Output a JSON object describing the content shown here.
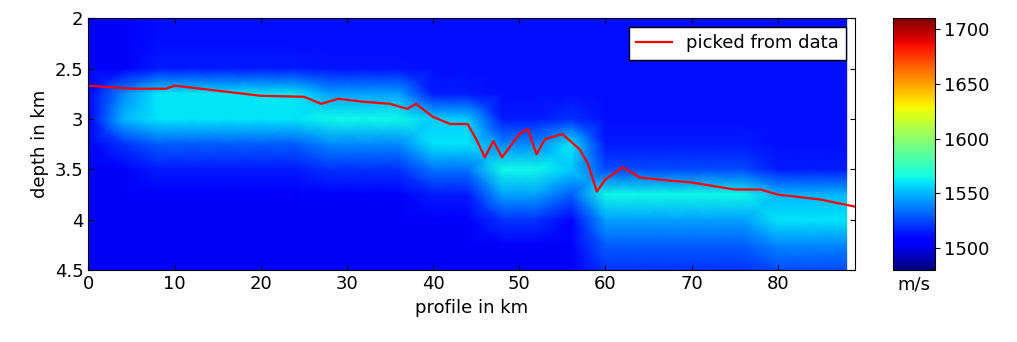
{
  "chart_data": {
    "type": "heatmap",
    "xlabel": "profile in km",
    "ylabel": "depth in km",
    "xlim": [
      0,
      89
    ],
    "ylim": [
      4.5,
      2
    ],
    "xticks": [
      0,
      10,
      20,
      30,
      40,
      50,
      60,
      70,
      80
    ],
    "yticks": [
      2,
      2.5,
      3,
      3.5,
      4,
      4.5
    ],
    "legend": "upper right",
    "heatmap": {
      "x": [
        0,
        4,
        8,
        12,
        16,
        20,
        24,
        28,
        32,
        36,
        40,
        44,
        48,
        52,
        56,
        60,
        64,
        68,
        72,
        76,
        80,
        84,
        88
      ],
      "y": [
        2.0,
        2.25,
        2.5,
        2.75,
        3.0,
        3.25,
        3.5,
        3.75,
        4.0,
        4.25,
        4.5
      ],
      "cells": [
        [
          1505,
          1505,
          1512,
          1512,
          1512,
          1512,
          1512,
          1512,
          1512,
          1512,
          1512,
          1512,
          1512,
          1512,
          1512,
          1512,
          1512,
          1512,
          1512,
          1512,
          1512,
          1512,
          1512
        ],
        [
          1505,
          1505,
          1512,
          1512,
          1512,
          1512,
          1512,
          1512,
          1512,
          1512,
          1512,
          1512,
          1512,
          1512,
          1512,
          1512,
          1512,
          1512,
          1512,
          1512,
          1512,
          1512,
          1512
        ],
        [
          1505,
          1505,
          1515,
          1515,
          1515,
          1515,
          1515,
          1513,
          1513,
          1513,
          1512,
          1512,
          1512,
          1512,
          1512,
          1512,
          1512,
          1512,
          1512,
          1512,
          1512,
          1512,
          1512
        ],
        [
          1505,
          1540,
          1560,
          1560,
          1560,
          1560,
          1560,
          1545,
          1545,
          1545,
          1515,
          1515,
          1512,
          1512,
          1512,
          1512,
          1512,
          1512,
          1512,
          1512,
          1512,
          1512,
          1512
        ],
        [
          1505,
          1550,
          1560,
          1560,
          1560,
          1560,
          1560,
          1565,
          1565,
          1565,
          1555,
          1555,
          1515,
          1515,
          1520,
          1512,
          1512,
          1512,
          1512,
          1512,
          1512,
          1512,
          1512
        ],
        [
          1505,
          1520,
          1530,
          1530,
          1530,
          1530,
          1530,
          1540,
          1540,
          1540,
          1560,
          1560,
          1540,
          1540,
          1560,
          1515,
          1515,
          1515,
          1515,
          1515,
          1512,
          1512,
          1512
        ],
        [
          1505,
          1505,
          1515,
          1515,
          1515,
          1515,
          1515,
          1520,
          1520,
          1520,
          1535,
          1535,
          1565,
          1565,
          1555,
          1525,
          1525,
          1525,
          1525,
          1525,
          1515,
          1515,
          1515
        ],
        [
          1505,
          1505,
          1505,
          1505,
          1505,
          1505,
          1505,
          1505,
          1505,
          1505,
          1515,
          1515,
          1545,
          1545,
          1530,
          1565,
          1565,
          1565,
          1565,
          1565,
          1550,
          1550,
          1550
        ],
        [
          1505,
          1505,
          1505,
          1505,
          1505,
          1505,
          1505,
          1505,
          1505,
          1505,
          1505,
          1505,
          1520,
          1520,
          1510,
          1545,
          1545,
          1545,
          1545,
          1545,
          1560,
          1560,
          1560
        ],
        [
          1505,
          1505,
          1505,
          1505,
          1505,
          1505,
          1505,
          1505,
          1505,
          1505,
          1505,
          1505,
          1505,
          1505,
          1505,
          1530,
          1530,
          1530,
          1530,
          1530,
          1540,
          1540,
          1540
        ],
        [
          1505,
          1505,
          1505,
          1505,
          1505,
          1505,
          1505,
          1505,
          1505,
          1505,
          1505,
          1505,
          1505,
          1505,
          1505,
          1520,
          1520,
          1520,
          1520,
          1520,
          1525,
          1525,
          1525
        ]
      ],
      "colorbar_range": [
        1480,
        1710
      ],
      "colorbar_ticks": [
        1500,
        1550,
        1600,
        1650,
        1700
      ],
      "colorbar_label": "m/s"
    },
    "series": [
      {
        "name": "picked from data",
        "color": "#ff0000",
        "type": "line",
        "x": [
          0,
          5,
          9,
          10,
          12,
          15,
          20,
          25,
          27,
          29,
          32,
          35,
          37,
          38,
          40,
          42,
          44,
          45,
          46,
          47,
          48,
          50,
          51,
          52,
          53,
          55,
          57,
          58,
          59,
          60,
          62,
          64,
          66,
          70,
          75,
          78,
          80,
          85,
          89
        ],
        "values": [
          2.67,
          2.7,
          2.7,
          2.67,
          2.69,
          2.72,
          2.77,
          2.78,
          2.85,
          2.8,
          2.83,
          2.85,
          2.9,
          2.85,
          2.98,
          3.05,
          3.05,
          3.2,
          3.38,
          3.22,
          3.38,
          3.15,
          3.1,
          3.35,
          3.2,
          3.15,
          3.3,
          3.45,
          3.72,
          3.6,
          3.48,
          3.58,
          3.6,
          3.63,
          3.7,
          3.7,
          3.75,
          3.8,
          3.87
        ]
      }
    ]
  }
}
